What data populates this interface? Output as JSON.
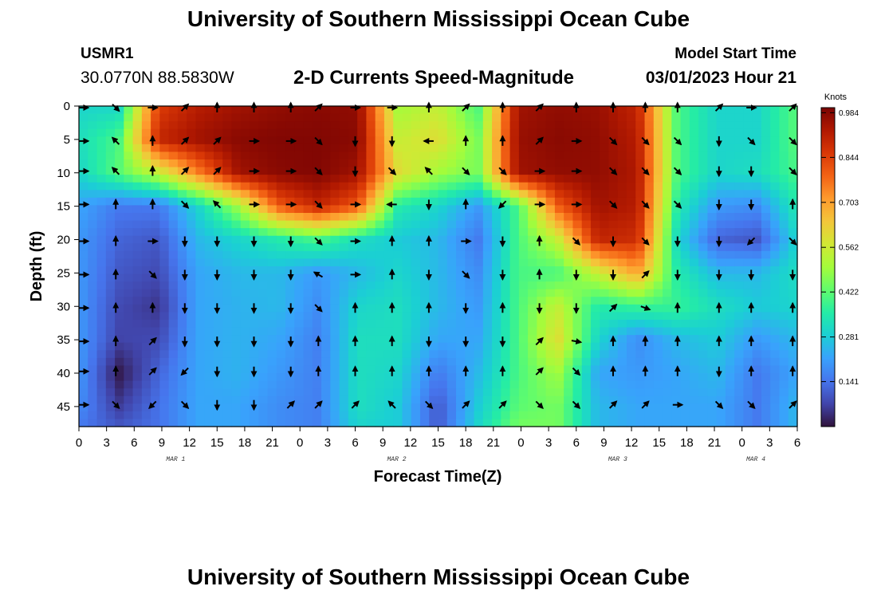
{
  "header": {
    "title": "University of Southern Mississippi Ocean Cube",
    "station_id": "USMR1",
    "station_coords": "30.0770N  88.5830W",
    "subtitle": "2-D Currents Speed-Magnitude",
    "model_start_label": "Model Start Time",
    "model_start_value": "03/01/2023 Hour 21"
  },
  "footer": {
    "title": "University of Southern Mississippi Ocean Cube"
  },
  "colorbar": {
    "unit_label": "Knots",
    "ticks": [
      "0.984",
      "0.844",
      "0.703",
      "0.562",
      "0.422",
      "0.281",
      "0.141"
    ],
    "tick_values": [
      0.984,
      0.844,
      0.703,
      0.562,
      0.422,
      0.281,
      0.141
    ],
    "range": [
      0,
      1.0
    ],
    "colors": [
      "#30123b",
      "#4145ab",
      "#4675ed",
      "#39a2fc",
      "#1bcfd4",
      "#24eca6",
      "#61fc6c",
      "#a4fc3b",
      "#d1e834",
      "#f3c63a",
      "#fe9b2d",
      "#f36315",
      "#d93806",
      "#b11901",
      "#7a0403"
    ]
  },
  "chart_data": {
    "type": "heatmap",
    "title": "2-D Currents Speed-Magnitude",
    "xlabel": "Forecast Time(Z)",
    "ylabel": "Depth (ft)",
    "unit": "Knots",
    "xlim": [
      0,
      78
    ],
    "ylim": [
      48,
      0
    ],
    "x_tick_values": [
      0,
      3,
      6,
      9,
      12,
      15,
      18,
      21,
      24,
      27,
      30,
      33,
      36,
      39,
      42,
      45,
      48,
      51,
      54,
      57,
      60,
      63,
      66,
      69,
      72,
      75,
      78
    ],
    "x_tick_labels": [
      "0",
      "3",
      "6",
      "9",
      "12",
      "15",
      "18",
      "21",
      "0",
      "3",
      "6",
      "9",
      "12",
      "15",
      "18",
      "21",
      "0",
      "3",
      "6",
      "9",
      "12",
      "15",
      "18",
      "21",
      "0",
      "3",
      "6"
    ],
    "y_ticks": [
      0,
      5,
      10,
      15,
      20,
      25,
      30,
      35,
      40,
      45
    ],
    "date_labels": [
      {
        "hour": 10.5,
        "label": "MAR 1"
      },
      {
        "hour": 34.5,
        "label": "MAR 2"
      },
      {
        "hour": 58.5,
        "label": "MAR 3"
      },
      {
        "hour": 73.5,
        "label": "MAR 4"
      }
    ],
    "grid_x_hours": [
      0,
      4.33,
      8.67,
      13,
      17.33,
      21.67,
      26,
      30.33,
      34.67,
      39,
      43.33,
      47.67,
      52,
      56.33,
      60.67,
      65,
      69.33,
      73.67,
      78
    ],
    "grid_depths": [
      0,
      5,
      10,
      15,
      20,
      25,
      30,
      35,
      40,
      45,
      48
    ],
    "speed": [
      [
        0.3,
        0.3,
        0.85,
        0.92,
        0.95,
        0.97,
        0.98,
        0.97,
        0.5,
        0.55,
        0.4,
        0.95,
        0.97,
        0.96,
        0.9,
        0.4,
        0.3,
        0.3,
        0.42
      ],
      [
        0.32,
        0.4,
        0.9,
        0.95,
        0.98,
        0.99,
        0.99,
        0.98,
        0.55,
        0.6,
        0.45,
        0.96,
        0.98,
        0.97,
        0.92,
        0.4,
        0.3,
        0.3,
        0.42
      ],
      [
        0.3,
        0.42,
        0.55,
        0.75,
        0.95,
        0.98,
        0.99,
        0.95,
        0.6,
        0.5,
        0.45,
        0.95,
        0.97,
        0.97,
        0.93,
        0.4,
        0.3,
        0.32,
        0.4
      ],
      [
        0.22,
        0.15,
        0.15,
        0.3,
        0.5,
        0.8,
        0.9,
        0.8,
        0.35,
        0.3,
        0.2,
        0.4,
        0.8,
        0.95,
        0.92,
        0.35,
        0.2,
        0.18,
        0.35
      ],
      [
        0.2,
        0.12,
        0.1,
        0.25,
        0.3,
        0.35,
        0.4,
        0.32,
        0.28,
        0.25,
        0.15,
        0.4,
        0.55,
        0.9,
        0.88,
        0.3,
        0.12,
        0.1,
        0.3
      ],
      [
        0.2,
        0.1,
        0.08,
        0.22,
        0.25,
        0.25,
        0.2,
        0.25,
        0.3,
        0.25,
        0.18,
        0.4,
        0.4,
        0.55,
        0.7,
        0.35,
        0.25,
        0.25,
        0.32
      ],
      [
        0.2,
        0.08,
        0.05,
        0.22,
        0.24,
        0.25,
        0.18,
        0.3,
        0.32,
        0.25,
        0.2,
        0.4,
        0.55,
        0.35,
        0.38,
        0.38,
        0.32,
        0.28,
        0.3
      ],
      [
        0.2,
        0.07,
        0.08,
        0.22,
        0.24,
        0.22,
        0.16,
        0.32,
        0.32,
        0.22,
        0.22,
        0.4,
        0.6,
        0.3,
        0.18,
        0.25,
        0.28,
        0.2,
        0.25
      ],
      [
        0.2,
        0.01,
        0.12,
        0.22,
        0.24,
        0.2,
        0.16,
        0.32,
        0.3,
        0.15,
        0.25,
        0.4,
        0.5,
        0.22,
        0.2,
        0.22,
        0.25,
        0.15,
        0.22
      ],
      [
        0.18,
        0.06,
        0.14,
        0.22,
        0.22,
        0.18,
        0.16,
        0.32,
        0.28,
        0.1,
        0.28,
        0.42,
        0.45,
        0.25,
        0.22,
        0.22,
        0.22,
        0.15,
        0.25
      ],
      [
        0.15,
        0.1,
        0.14,
        0.22,
        0.22,
        0.18,
        0.16,
        0.3,
        0.28,
        0.1,
        0.3,
        0.45,
        0.45,
        0.25,
        0.22,
        0.22,
        0.22,
        0.15,
        0.25
      ]
    ],
    "vector_hours": [
      0.5,
      4,
      8,
      11.5,
      15,
      19,
      23,
      26,
      30,
      34,
      38,
      42,
      46,
      50,
      54,
      58,
      61.5,
      65,
      69.5,
      73,
      77.5
    ],
    "vector_depths": [
      0,
      5,
      9.5,
      14.5,
      20,
      25,
      30,
      35,
      39.5,
      44.5
    ],
    "vector_dir_deg": [
      [
        90,
        135,
        90,
        45,
        0,
        0,
        0,
        45,
        90,
        90,
        0,
        45,
        0,
        45,
        0,
        0,
        0,
        0,
        45,
        90,
        45
      ],
      [
        90,
        315,
        0,
        45,
        45,
        90,
        90,
        135,
        180,
        180,
        270,
        0,
        0,
        45,
        90,
        135,
        135,
        135,
        180,
        135,
        135
      ],
      [
        90,
        315,
        0,
        45,
        45,
        90,
        90,
        135,
        180,
        135,
        315,
        135,
        135,
        90,
        90,
        135,
        135,
        135,
        180,
        180,
        135
      ],
      [
        90,
        0,
        0,
        135,
        315,
        90,
        90,
        135,
        90,
        270,
        180,
        0,
        225,
        90,
        90,
        135,
        135,
        135,
        180,
        180,
        0
      ],
      [
        90,
        0,
        90,
        180,
        180,
        180,
        180,
        135,
        90,
        0,
        0,
        90,
        180,
        0,
        135,
        180,
        135,
        180,
        180,
        225,
        135
      ],
      [
        90,
        0,
        135,
        180,
        180,
        180,
        180,
        300,
        90,
        0,
        180,
        135,
        180,
        0,
        180,
        180,
        45,
        180,
        180,
        180,
        180
      ],
      [
        90,
        0,
        0,
        180,
        180,
        180,
        180,
        135,
        0,
        0,
        0,
        180,
        0,
        180,
        180,
        45,
        110,
        0,
        0,
        0,
        0
      ],
      [
        90,
        0,
        45,
        180,
        180,
        180,
        180,
        0,
        0,
        0,
        180,
        180,
        180,
        45,
        100,
        0,
        0,
        0,
        0,
        0,
        0
      ],
      [
        90,
        0,
        45,
        225,
        180,
        180,
        180,
        0,
        0,
        0,
        0,
        0,
        0,
        45,
        135,
        0,
        0,
        0,
        180,
        0,
        0
      ],
      [
        90,
        135,
        225,
        135,
        180,
        180,
        45,
        45,
        45,
        315,
        135,
        45,
        45,
        135,
        135,
        45,
        45,
        90,
        135,
        135,
        45
      ]
    ]
  }
}
